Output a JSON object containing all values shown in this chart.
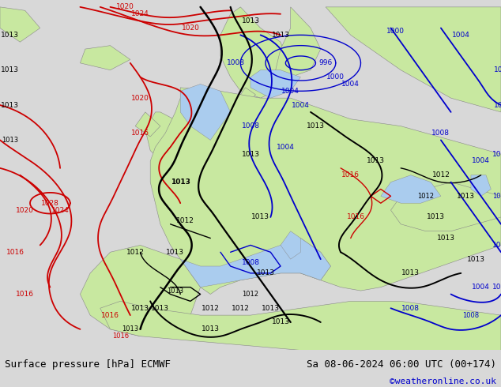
{
  "title_left": "Surface pressure [hPa] ECMWF",
  "title_right": "Sa 08-06-2024 06:00 UTC (00+174)",
  "credit": "©weatheronline.co.uk",
  "ocean_color": "#d8d8d8",
  "land_color": "#c8e8a0",
  "sea_inner_color": "#aaccee",
  "border_color": "#888888",
  "bottom_bar_color": "#d8d8d8",
  "fig_width": 6.34,
  "fig_height": 4.9,
  "dpi": 100,
  "font_size_bottom": 9,
  "font_size_credit": 8,
  "isobar_lw": 1.3,
  "label_fs": 6.5
}
